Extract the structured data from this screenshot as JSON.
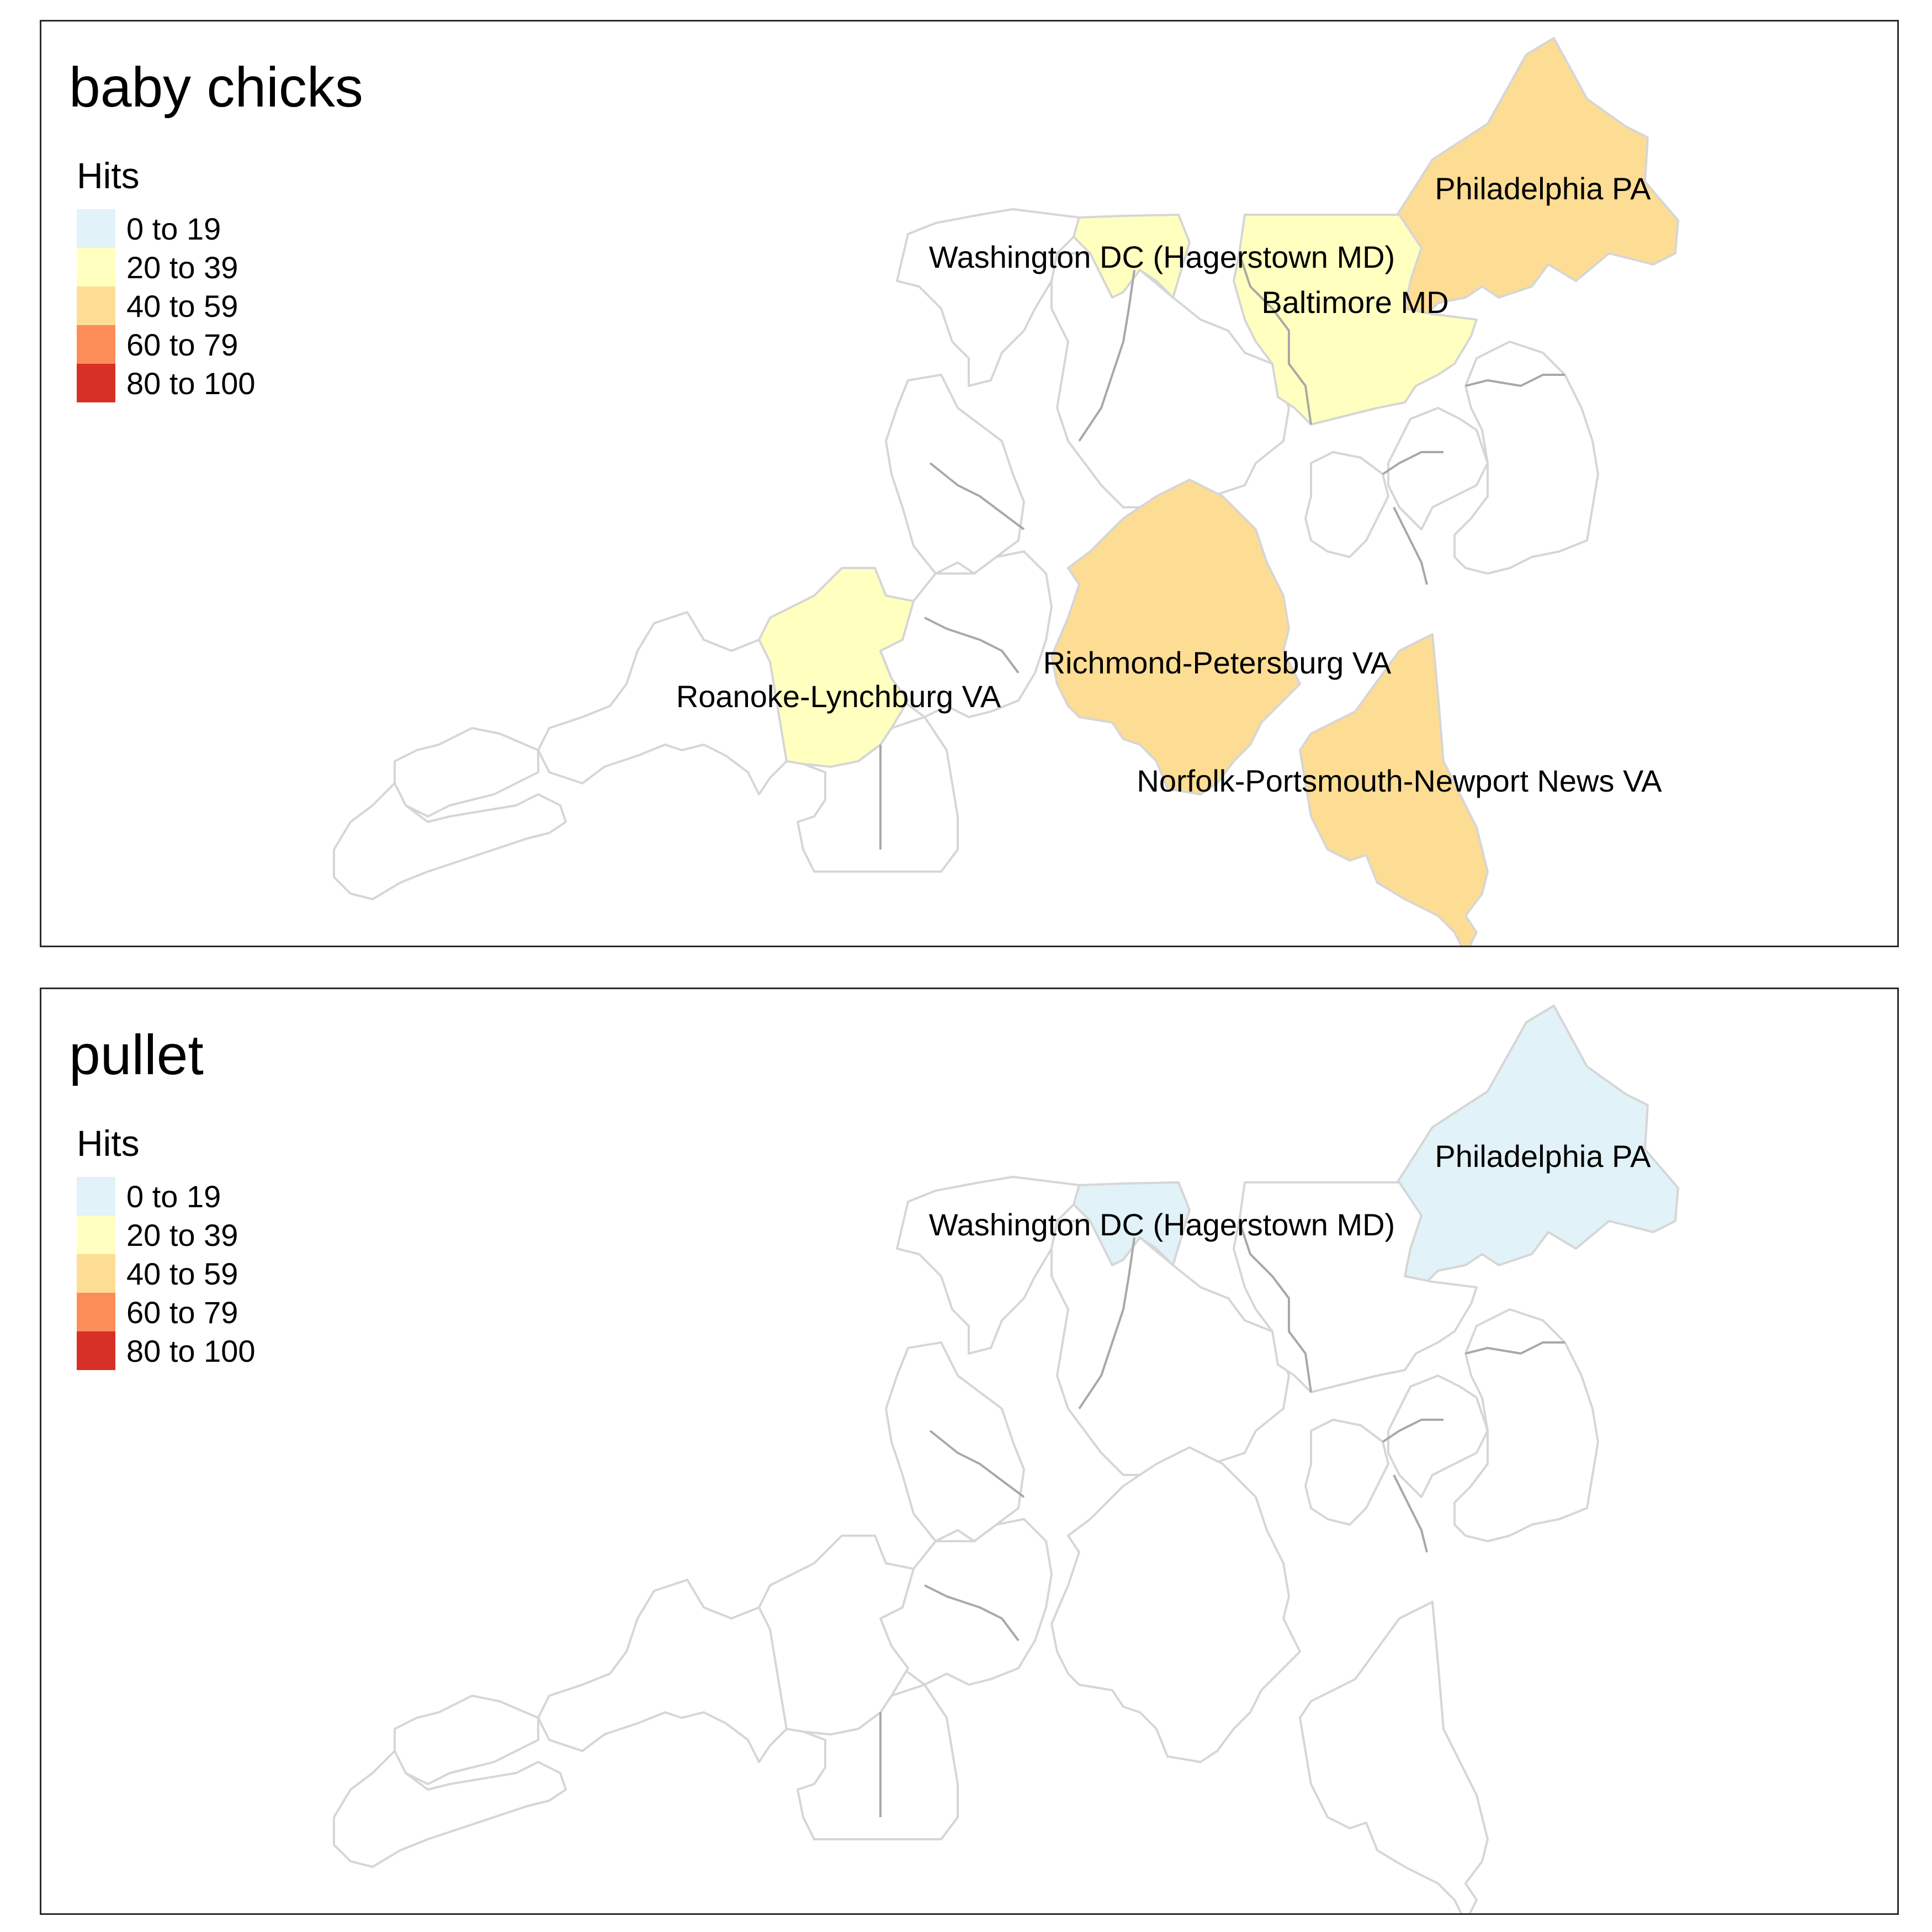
{
  "colors": {
    "background": "#ffffff",
    "no_data": "#ffffff",
    "border": "#d6d6d6",
    "state_line": "#a8a8a8"
  },
  "legend": {
    "title": "Hits",
    "bins": [
      {
        "label": "0 to 19",
        "color": "#e1f2f8"
      },
      {
        "label": "20 to 39",
        "color": "#ffffc0"
      },
      {
        "label": "40 to 59",
        "color": "#fddd94"
      },
      {
        "label": "60 to 79",
        "color": "#fc8d59"
      },
      {
        "label": "80 to 100",
        "color": "#d73027"
      }
    ]
  },
  "panels": [
    {
      "title": "baby chicks",
      "regions": [
        {
          "name": "Philadelphia PA",
          "bin": 2
        },
        {
          "name": "Washington DC (Hagerstown MD)",
          "bin": 1
        },
        {
          "name": "Baltimore MD",
          "bin": 1
        },
        {
          "name": "Richmond-Petersburg VA",
          "bin": 2
        },
        {
          "name": "Roanoke-Lynchburg VA",
          "bin": 1
        },
        {
          "name": "Norfolk-Portsmouth-Newport News VA",
          "bin": 2
        }
      ]
    },
    {
      "title": "pullet",
      "regions": [
        {
          "name": "Philadelphia PA",
          "bin": 0
        },
        {
          "name": "Washington DC (Hagerstown MD)",
          "bin": 0
        }
      ]
    }
  ]
}
